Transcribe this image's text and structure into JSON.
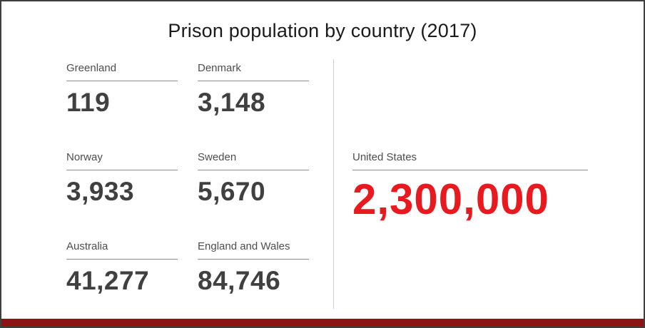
{
  "title": "Prison population by country (2017)",
  "stats": [
    {
      "label": "Greenland",
      "value": "119"
    },
    {
      "label": "Denmark",
      "value": "3,148"
    },
    {
      "label": "Norway",
      "value": "3,933"
    },
    {
      "label": "Sweden",
      "value": "5,670"
    },
    {
      "label": "Australia",
      "value": "41,277"
    },
    {
      "label": "England and Wales",
      "value": "84,746"
    }
  ],
  "highlight": {
    "label": "United States",
    "value": "2,300,000"
  },
  "colors": {
    "accent_red": "#e8191f",
    "bottom_bar": "#8d1414",
    "number_gray": "#404040",
    "label_gray": "#4d4d4d"
  },
  "chart_data": {
    "type": "table",
    "title": "Prison population by country (2017)",
    "categories": [
      "Greenland",
      "Denmark",
      "Norway",
      "Sweden",
      "Australia",
      "England and Wales",
      "United States"
    ],
    "values": [
      119,
      3148,
      3933,
      5670,
      41277,
      84746,
      2300000
    ],
    "highlight_category": "United States",
    "highlight_color": "#e8191f",
    "layout": "left grid of six small stats in 2 columns x 3 rows, vertical divider, large red United States figure on right, dark red bar along bottom"
  }
}
